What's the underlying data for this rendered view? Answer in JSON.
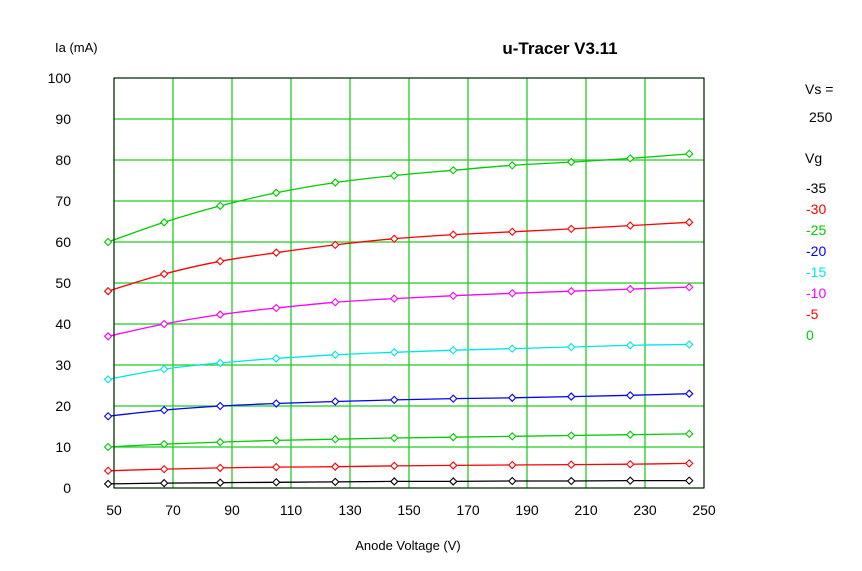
{
  "colors": {
    "grid": "#22cc22",
    "frame": "#000000",
    "title": "#1a1aff",
    "background": "#ffffff"
  },
  "chart_data": {
    "type": "line",
    "title": "u-Tracer V3.11",
    "ylabel": "Ia (mA)",
    "xlabel": "Anode Voltage (V)",
    "xlim": [
      50,
      250
    ],
    "ylim": [
      0,
      100
    ],
    "x_ticks": [
      "50",
      "70",
      "90",
      "110",
      "130",
      "150",
      "170",
      "190",
      "210",
      "230",
      "250"
    ],
    "y_ticks": [
      "0",
      "10",
      "20",
      "30",
      "40",
      "50",
      "60",
      "70",
      "80",
      "90",
      "100"
    ],
    "grid": true,
    "supply": {
      "label": "Vs =",
      "value": "250"
    },
    "legend_title": "Vg",
    "legend_position": "right",
    "series": [
      {
        "name": "-35",
        "color": "#000000",
        "x": [
          48,
          67,
          86,
          105,
          125,
          145,
          165,
          185,
          205,
          225,
          245
        ],
        "y": [
          1.0,
          1.2,
          1.3,
          1.4,
          1.5,
          1.6,
          1.6,
          1.7,
          1.7,
          1.8,
          1.8
        ]
      },
      {
        "name": "-30",
        "color": "#ff0000",
        "x": [
          48,
          67,
          86,
          105,
          125,
          145,
          165,
          185,
          205,
          225,
          245
        ],
        "y": [
          4.2,
          4.6,
          4.9,
          5.1,
          5.2,
          5.4,
          5.5,
          5.6,
          5.7,
          5.8,
          6.0
        ]
      },
      {
        "name": "-25",
        "color": "#00cc00",
        "x": [
          48,
          67,
          86,
          105,
          125,
          145,
          165,
          185,
          205,
          225,
          245
        ],
        "y": [
          10.0,
          10.7,
          11.2,
          11.6,
          11.9,
          12.2,
          12.4,
          12.6,
          12.8,
          13.0,
          13.2
        ]
      },
      {
        "name": "-20",
        "color": "#0000ff",
        "x": [
          48,
          67,
          86,
          105,
          125,
          145,
          165,
          185,
          205,
          225,
          245
        ],
        "y": [
          17.5,
          19.0,
          20.0,
          20.6,
          21.1,
          21.5,
          21.8,
          22.0,
          22.3,
          22.6,
          23.0
        ]
      },
      {
        "name": "-15",
        "color": "#00e6e6",
        "x": [
          48,
          67,
          86,
          105,
          125,
          145,
          165,
          185,
          205,
          225,
          245
        ],
        "y": [
          26.5,
          29.0,
          30.5,
          31.6,
          32.5,
          33.1,
          33.6,
          34.0,
          34.4,
          34.8,
          35.0
        ]
      },
      {
        "name": "-10",
        "color": "#ff00ff",
        "x": [
          48,
          67,
          86,
          105,
          125,
          145,
          165,
          185,
          205,
          225,
          245
        ],
        "y": [
          37.0,
          40.0,
          42.3,
          43.9,
          45.3,
          46.2,
          46.9,
          47.5,
          48.0,
          48.5,
          49.0
        ]
      },
      {
        "name": "-5",
        "color": "#ff0000",
        "x": [
          48,
          67,
          86,
          105,
          125,
          145,
          165,
          185,
          205,
          225,
          245
        ],
        "y": [
          48.0,
          52.2,
          55.3,
          57.4,
          59.3,
          60.8,
          61.8,
          62.5,
          63.2,
          64.0,
          64.8
        ]
      },
      {
        "name": "0",
        "color": "#00cc00",
        "x": [
          48,
          67,
          86,
          105,
          125,
          145,
          165,
          185,
          205,
          225,
          245
        ],
        "y": [
          60.0,
          64.8,
          68.8,
          72.0,
          74.5,
          76.2,
          77.5,
          78.7,
          79.5,
          80.4,
          81.5
        ]
      }
    ]
  }
}
